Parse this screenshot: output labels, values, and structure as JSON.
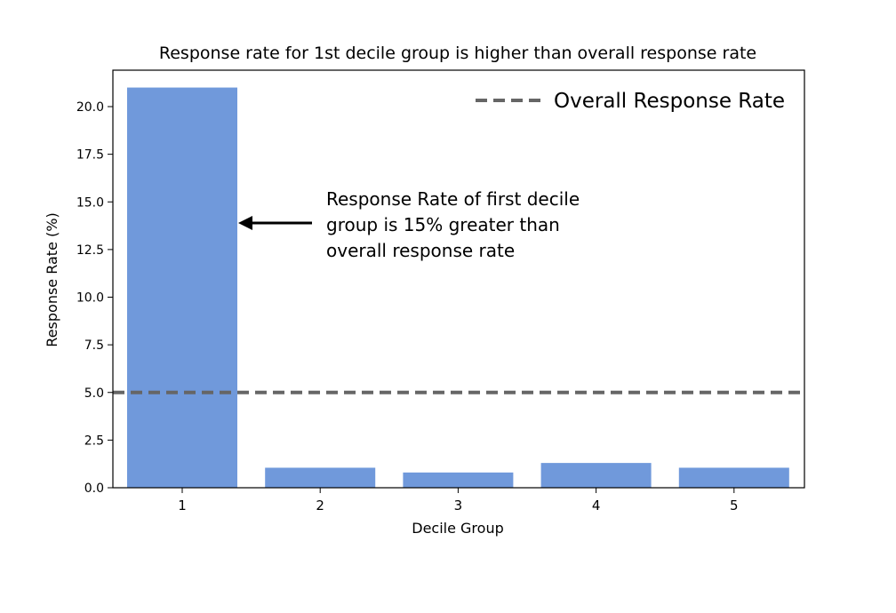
{
  "chart_data": {
    "type": "bar",
    "title": "Response rate for 1st decile group is higher than overall response rate",
    "xlabel": "Decile Group",
    "ylabel": "Response Rate (%)",
    "categories": [
      "1",
      "2",
      "3",
      "4",
      "5"
    ],
    "values": [
      21.0,
      1.05,
      0.8,
      1.3,
      1.05
    ],
    "ylim": [
      0,
      21.0
    ],
    "yticks": [
      "0.0",
      "2.5",
      "5.0",
      "7.5",
      "10.0",
      "12.5",
      "15.0",
      "17.5",
      "20.0"
    ],
    "bar_color": "#7099db",
    "reference_line": {
      "name": "Overall Response Rate",
      "value": 5.0,
      "style": "dashed",
      "color": "#666666"
    },
    "legend": {
      "label": "Overall Response Rate",
      "position": "top-right"
    },
    "annotation": {
      "lines": [
        "Response Rate of first decile",
        "group is 15% greater than",
        "overall response rate"
      ],
      "points_to_category": "1"
    },
    "grid": false
  }
}
